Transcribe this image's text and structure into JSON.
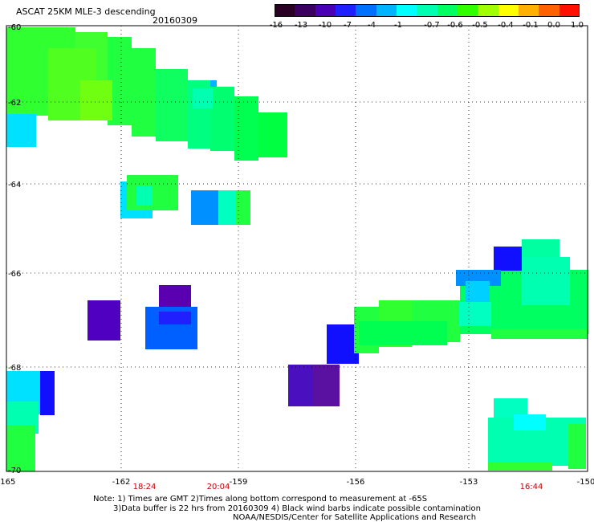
{
  "header": {
    "title": "ASCAT 25KM MLE-3 descending",
    "date": "20160309"
  },
  "colorbar": {
    "labels": [
      "-16",
      "-13",
      "-10",
      "-7",
      "-4",
      "-1",
      "-0.7",
      "-0.6",
      "-0.5",
      "-0.4",
      "-0.1",
      "0.0",
      "1.0"
    ],
    "colors": [
      "#2a0025",
      "#3c0060",
      "#4a00b4",
      "#2020ff",
      "#0070ff",
      "#00b4ff",
      "#00ffff",
      "#00ffb0",
      "#00ff60",
      "#30ff00",
      "#a0ff00",
      "#ffff00",
      "#ffb000",
      "#ff6000",
      "#ff1000"
    ]
  },
  "map": {
    "lat_labels": [
      "-60",
      "-62",
      "-64",
      "-66",
      "-68",
      "-70"
    ],
    "lon_labels": [
      "-165",
      "-162",
      "-159",
      "-156",
      "-153",
      "-150"
    ],
    "time_labels": [
      "18:24",
      "20:04",
      "16:44"
    ]
  },
  "notes": [
    "Note: 1) Times are GMT 2)Times along bottom correspond to measurement at -65S",
    "3)Data buffer is 22 hrs from 20160309 4) Black wind barbs indicate possible contamination",
    "NOAA/NESDIS/Center for Satellite Applications and Research"
  ]
}
